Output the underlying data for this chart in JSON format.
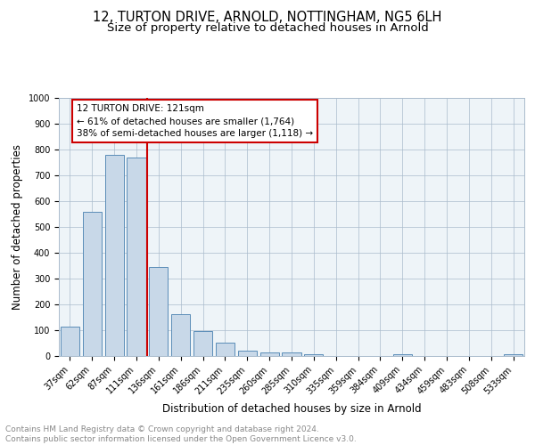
{
  "title1": "12, TURTON DRIVE, ARNOLD, NOTTINGHAM, NG5 6LH",
  "title2": "Size of property relative to detached houses in Arnold",
  "xlabel": "Distribution of detached houses by size in Arnold",
  "ylabel": "Number of detached properties",
  "categories": [
    "37sqm",
    "62sqm",
    "87sqm",
    "111sqm",
    "136sqm",
    "161sqm",
    "186sqm",
    "211sqm",
    "235sqm",
    "260sqm",
    "285sqm",
    "310sqm",
    "335sqm",
    "359sqm",
    "384sqm",
    "409sqm",
    "434sqm",
    "459sqm",
    "483sqm",
    "508sqm",
    "533sqm"
  ],
  "values": [
    113,
    557,
    778,
    770,
    344,
    161,
    97,
    53,
    20,
    13,
    13,
    7,
    0,
    0,
    0,
    8,
    0,
    0,
    0,
    0,
    8
  ],
  "bar_color": "#c8d8e8",
  "bar_edge_color": "#5b8db8",
  "vline_x_index": 3,
  "vline_color": "#cc0000",
  "annotation_line1": "12 TURTON DRIVE: 121sqm",
  "annotation_line2": "← 61% of detached houses are smaller (1,764)",
  "annotation_line3": "38% of semi-detached houses are larger (1,118) →",
  "annotation_box_color": "#ffffff",
  "annotation_border_color": "#cc0000",
  "footer_text": "Contains HM Land Registry data © Crown copyright and database right 2024.\nContains public sector information licensed under the Open Government Licence v3.0.",
  "ylim": [
    0,
    1000
  ],
  "yticks": [
    0,
    100,
    200,
    300,
    400,
    500,
    600,
    700,
    800,
    900,
    1000
  ],
  "grid_color": "#aabbcc",
  "bg_color": "#eef4f8",
  "title1_fontsize": 10.5,
  "title2_fontsize": 9.5,
  "xlabel_fontsize": 8.5,
  "ylabel_fontsize": 8.5,
  "tick_fontsize": 7,
  "annotation_fontsize": 7.5,
  "footer_fontsize": 6.5
}
